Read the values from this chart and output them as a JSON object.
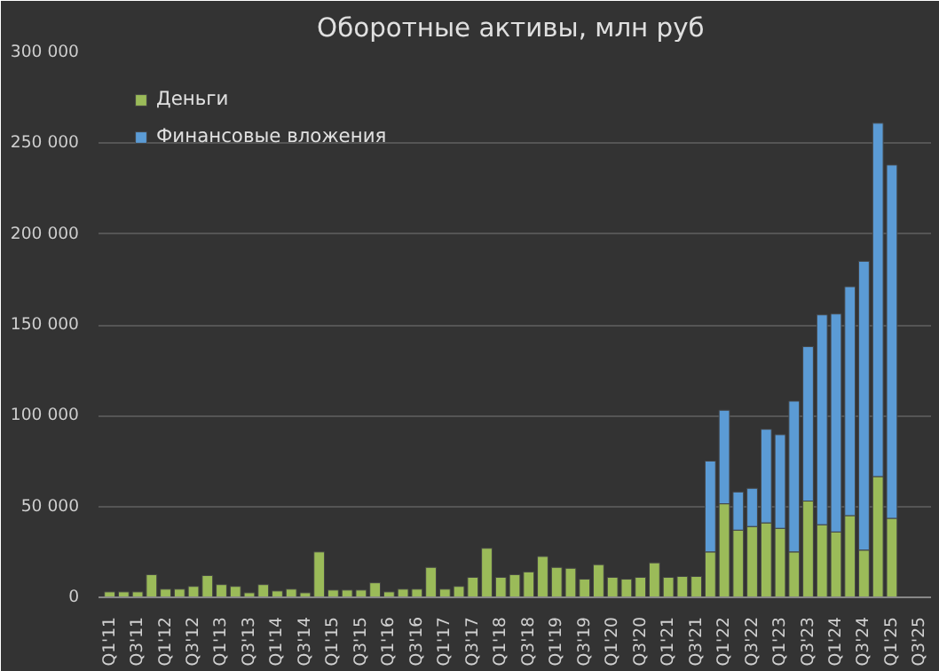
{
  "chart_data": {
    "type": "bar",
    "title": "Оборотные  активы, млн руб",
    "stacked": true,
    "legend": "top left",
    "grid": "y",
    "categories": [
      "Q1'11",
      null,
      "Q3'11",
      null,
      "Q1'12",
      null,
      "Q3'12",
      null,
      "Q1'13",
      null,
      "Q3'13",
      null,
      "Q1'14",
      null,
      "Q3'14",
      null,
      "Q1'15",
      null,
      "Q3'15",
      null,
      "Q1'16",
      null,
      "Q3'16",
      null,
      "Q1'17",
      null,
      "Q3'17",
      null,
      "Q1'18",
      null,
      "Q3'18",
      null,
      "Q1'19",
      null,
      "Q3'19",
      null,
      "Q1'20",
      null,
      "Q3'20",
      null,
      "Q1'21",
      null,
      "Q3'21",
      null,
      "Q1'22",
      null,
      "Q3'22",
      null,
      "Q1'23",
      null,
      "Q3'23",
      null,
      "Q1'24",
      null,
      "Q3'24",
      null,
      "Q1'25",
      null,
      "Q3'25"
    ],
    "ylim": [
      0,
      300000
    ],
    "yticks": [
      0,
      {
        "value": 50000,
        "label": "50 000"
      },
      {
        "value": 100000,
        "label": "100 000"
      },
      {
        "value": 150000,
        "label": "150 000"
      },
      {
        "value": 200000,
        "label": "200 000"
      },
      {
        "value": 250000,
        "label": "250 000"
      },
      {
        "value": 300000,
        "label": "300 000"
      }
    ],
    "series": [
      {
        "name": "Деньги",
        "color": "#9bbb59",
        "values": [
          3000,
          3000,
          3000,
          12500,
          4500,
          4500,
          6000,
          12000,
          7000,
          6000,
          2500,
          7000,
          3500,
          4500,
          2500,
          25000,
          4000,
          4000,
          4000,
          8000,
          3000,
          4500,
          4500,
          16500,
          4500,
          6000,
          11000,
          27000,
          11000,
          12500,
          14000,
          22500,
          16500,
          16000,
          10000,
          18000,
          11000,
          10000,
          11000,
          19000,
          11000,
          11500,
          11500,
          25000,
          51500,
          37000,
          39000,
          41000,
          38000,
          25000,
          53000,
          40000,
          36000,
          45000,
          26000,
          66500,
          43500,
          null,
          null
        ]
      },
      {
        "name": "Финансовые вложения",
        "color": "#5b9bd5",
        "values": [
          null,
          null,
          null,
          null,
          null,
          null,
          null,
          null,
          null,
          null,
          null,
          null,
          null,
          null,
          null,
          null,
          null,
          null,
          null,
          null,
          null,
          null,
          null,
          null,
          null,
          null,
          null,
          null,
          null,
          null,
          null,
          null,
          null,
          null,
          null,
          null,
          null,
          null,
          null,
          null,
          null,
          null,
          null,
          50000,
          51500,
          21000,
          21000,
          51500,
          51500,
          83000,
          85000,
          115500,
          120000,
          126000,
          159000,
          194500,
          194500,
          null,
          null
        ]
      }
    ]
  }
}
